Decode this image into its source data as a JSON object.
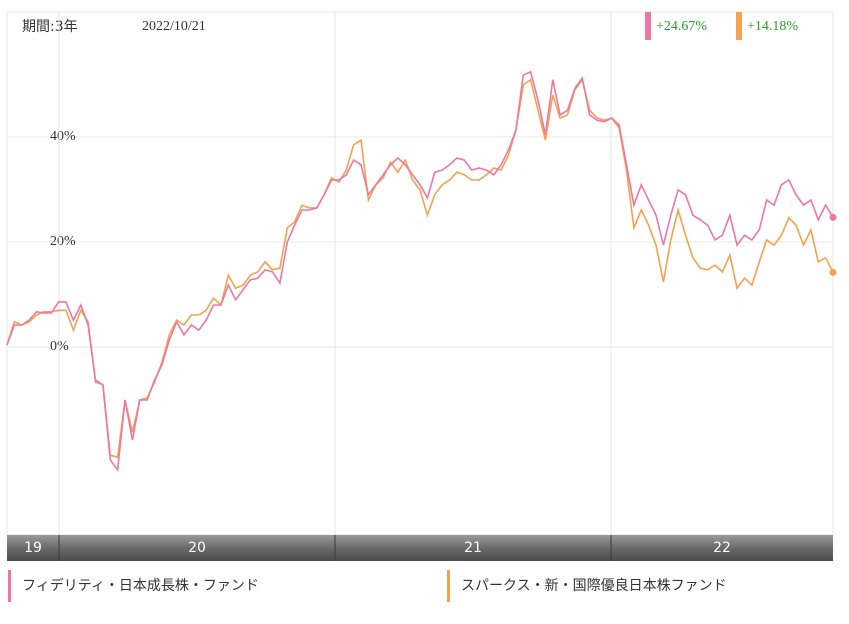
{
  "chart_data": {
    "type": "line",
    "period": "期間:3年",
    "date": "2022/10/21",
    "x_axis_labels": [
      "19",
      "20",
      "21",
      "22"
    ],
    "ylim": [
      -35.8,
      63.8
    ],
    "yticks": [
      {
        "value": 0,
        "label": "0%"
      },
      {
        "value": 20,
        "label": "20%"
      },
      {
        "value": 40,
        "label": "40%"
      }
    ],
    "grid": true,
    "series": [
      {
        "name": "フィデリティ・日本成長株・ファンド",
        "color": "#ee77a4",
        "change": 24.67,
        "change_label": "+24.67%",
        "values": [
          0.4,
          4.2,
          4.2,
          5.1,
          6.7,
          6.5,
          6.5,
          8.6,
          8.6,
          5.1,
          8.0,
          4.2,
          -6.3,
          -7.2,
          -21.5,
          -23.4,
          -10.1,
          -17.7,
          -10.1,
          -10.1,
          -6.3,
          -3.4,
          1.3,
          4.8,
          2.3,
          4.2,
          3.2,
          5.1,
          8.0,
          8.0,
          11.8,
          9.0,
          10.9,
          12.8,
          13.1,
          14.7,
          14.3,
          12.2,
          20.0,
          23.2,
          26.1,
          26.1,
          26.5,
          29.0,
          31.8,
          31.8,
          32.8,
          35.6,
          34.7,
          29.0,
          30.9,
          32.8,
          34.7,
          36.0,
          34.7,
          32.8,
          30.9,
          28.4,
          33.3,
          33.7,
          34.7,
          36.0,
          35.6,
          33.7,
          34.1,
          33.7,
          32.8,
          34.7,
          37.5,
          41.3,
          51.8,
          52.4,
          47.0,
          40.4,
          50.9,
          44.2,
          45.1,
          49.3,
          51.2,
          44.2,
          43.2,
          42.9,
          43.6,
          42.3,
          34.7,
          27.0,
          30.9,
          28.0,
          25.1,
          19.4,
          25.1,
          29.9,
          29.0,
          25.1,
          24.2,
          23.2,
          20.4,
          21.3,
          25.1,
          19.4,
          21.3,
          20.4,
          22.3,
          28.0,
          27.0,
          30.9,
          31.8,
          29.0,
          27.0,
          28.0,
          24.2,
          27.0,
          24.7
        ]
      },
      {
        "name": "スパークス・新・国際優良日本株ファンド",
        "color": "#f4a24e",
        "change": 14.18,
        "change_label": "+14.18%",
        "values": [
          0.4,
          4.8,
          4.2,
          4.8,
          6.1,
          6.7,
          6.7,
          7.0,
          7.0,
          3.2,
          7.0,
          4.8,
          -6.7,
          -7.2,
          -20.6,
          -21.0,
          -10.1,
          -16.2,
          -10.1,
          -9.7,
          -6.7,
          -2.9,
          2.3,
          5.1,
          4.2,
          6.1,
          6.1,
          7.0,
          9.3,
          8.0,
          13.7,
          11.2,
          11.8,
          13.7,
          14.3,
          16.2,
          14.7,
          15.0,
          22.7,
          23.8,
          27.0,
          26.5,
          26.5,
          29.0,
          32.2,
          31.4,
          33.7,
          38.5,
          39.4,
          28.0,
          30.9,
          32.2,
          35.2,
          33.3,
          35.6,
          31.8,
          29.9,
          25.1,
          29.0,
          30.9,
          31.8,
          33.3,
          32.8,
          31.8,
          31.8,
          32.8,
          34.1,
          33.7,
          36.6,
          41.3,
          49.9,
          50.9,
          45.1,
          39.4,
          48.0,
          43.6,
          44.2,
          49.0,
          50.9,
          45.1,
          43.6,
          43.2,
          43.6,
          41.7,
          33.7,
          22.7,
          26.1,
          23.2,
          19.4,
          12.4,
          20.4,
          26.1,
          21.3,
          17.0,
          15.0,
          14.7,
          15.6,
          14.3,
          17.5,
          11.2,
          13.1,
          11.8,
          16.2,
          20.4,
          19.4,
          21.3,
          24.6,
          23.2,
          19.4,
          22.3,
          16.2,
          17.0,
          14.2
        ]
      }
    ]
  }
}
